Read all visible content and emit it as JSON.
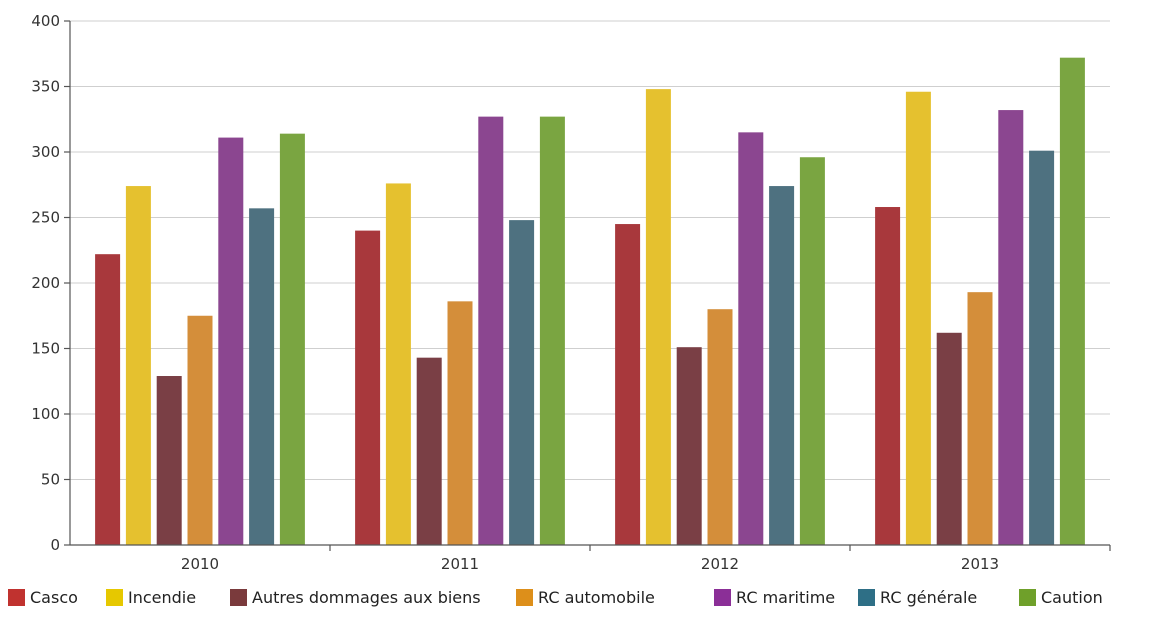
{
  "chart_data": {
    "type": "bar",
    "title": "",
    "xlabel": "",
    "ylabel": "",
    "categories": [
      "2010",
      "2011",
      "2012",
      "2013"
    ],
    "ylim": [
      0,
      400
    ],
    "yticks": [
      0,
      50,
      100,
      150,
      200,
      250,
      300,
      350,
      400
    ],
    "grid": true,
    "legend_position": "bottom",
    "series": [
      {
        "name": "Casco",
        "color": "#a8383c",
        "legend_color": "#c0322f",
        "values": [
          222,
          240,
          245,
          258
        ]
      },
      {
        "name": "Incendie",
        "color": "#e5c12f",
        "legend_color": "#e6c800",
        "values": [
          274,
          276,
          348,
          346
        ]
      },
      {
        "name": "Autres dommages aux biens",
        "color": "#7a3f45",
        "legend_color": "#7a3a3c",
        "values": [
          129,
          143,
          151,
          162
        ]
      },
      {
        "name": "RC automobile",
        "color": "#d48e3a",
        "legend_color": "#dd8f1a",
        "values": [
          175,
          186,
          180,
          193
        ]
      },
      {
        "name": "RC maritime",
        "color": "#8b4690",
        "legend_color": "#8b2f97",
        "values": [
          311,
          327,
          315,
          332
        ]
      },
      {
        "name": "RC générale",
        "color": "#4e7180",
        "legend_color": "#2e6f86",
        "values": [
          257,
          248,
          274,
          301
        ]
      },
      {
        "name": "Caution",
        "color": "#7aa541",
        "legend_color": "#6fa02a",
        "values": [
          314,
          327,
          296,
          372
        ]
      }
    ]
  }
}
